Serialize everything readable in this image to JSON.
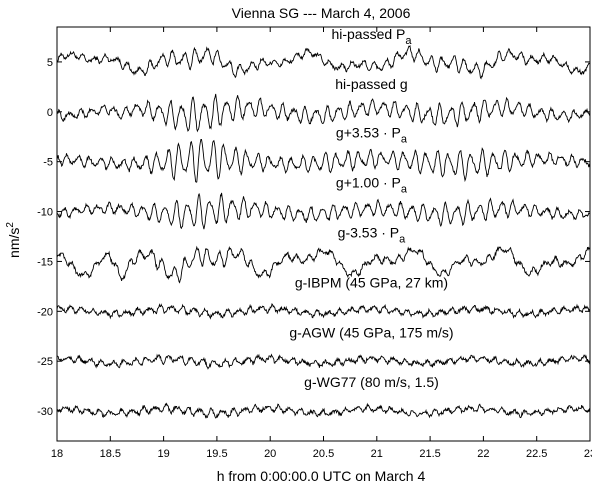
{
  "chart_data": {
    "type": "line",
    "title": "Vienna SG --- March 4, 2006",
    "xlabel": "h from 0:00:00.0 UTC on March 4",
    "ylabel_base": "nm/s",
    "ylabel_exp": "2",
    "xlim": [
      18,
      23
    ],
    "ylim": [
      -33,
      8.5
    ],
    "grid": false,
    "x_ticks": [
      18,
      18.5,
      19,
      19.5,
      20,
      20.5,
      21,
      21.5,
      22,
      22.5,
      23
    ],
    "x_tick_labels": [
      "18",
      "18.5",
      "19",
      "19.5",
      "20",
      "20.5",
      "21",
      "21.5",
      "22",
      "22.5",
      "23"
    ],
    "y_ticks": [
      5,
      0,
      -5,
      -10,
      -15,
      -20,
      -25,
      -30
    ],
    "y_tick_labels": [
      "5",
      "0",
      "-5",
      "-10",
      "-15",
      "-20",
      "-25",
      "-30"
    ],
    "series": [
      {
        "name": "hi-passed P",
        "name_sub": "a",
        "offset": 5,
        "label_x": 20.95,
        "label_y": 7.3
      },
      {
        "name": "hi-passed g",
        "name_sub": "",
        "offset": 0,
        "label_x": 20.95,
        "label_y": 2.3
      },
      {
        "name": "g+3.53 · P",
        "name_sub": "a",
        "offset": -5,
        "label_x": 20.95,
        "label_y": -2.6
      },
      {
        "name": "g+1.00 · P",
        "name_sub": "a",
        "offset": -10,
        "label_x": 20.95,
        "label_y": -7.6
      },
      {
        "name": "g-3.53 · P",
        "name_sub": "a",
        "offset": -15,
        "label_x": 20.95,
        "label_y": -12.6
      },
      {
        "name": "g-IBPM (45 GPa, 27 km)",
        "name_sub": "",
        "offset": -20,
        "label_x": 20.95,
        "label_y": -17.6
      },
      {
        "name": "g-AGW (45 GPa, 175 m/s)",
        "name_sub": "",
        "offset": -25,
        "label_x": 20.95,
        "label_y": -22.6
      },
      {
        "name": "g-WG77 (80 m/s, 1.5)",
        "name_sub": "",
        "offset": -30,
        "label_x": 20.95,
        "label_y": -27.6
      }
    ]
  }
}
